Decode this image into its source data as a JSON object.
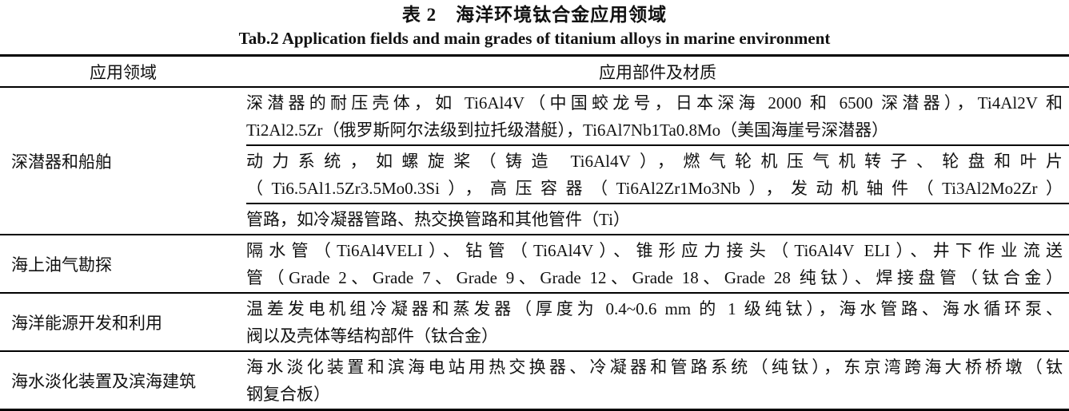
{
  "document": {
    "title_zh": "表 2　海洋环境钛合金应用领域",
    "title_en": "Tab.2 Application fields and main grades of titanium alloys in marine environment"
  },
  "table": {
    "header": {
      "field": "应用领域",
      "parts": "应用部件及材质"
    },
    "rows": [
      {
        "field": "深潜器和船舶",
        "segments": [
          {
            "lines": [
              "深潜器的耐压壳体，如 Ti6Al4V（中国蛟龙号，日本深海 2000 和 6500 深潜器），Ti4Al2V 和",
              "Ti2Al2.5Zr（俄罗斯阿尔法级到拉托级潜艇），Ti6Al7Nb1Ta0.8Mo（美国海崖号深潜器）"
            ]
          },
          {
            "lines": [
              "动力系统，如螺旋桨（铸造 Ti6Al4V），燃气轮机压气机转子、轮盘和叶片",
              "（Ti6.5Al1.5Zr3.5Mo0.3Si），高压容器（Ti6Al2Zr1Mo3Nb），发动机轴件（Ti3Al2Mo2Zr）"
            ]
          },
          {
            "lines": [
              "管路，如冷凝器管路、热交换管路和其他管件（Ti）"
            ]
          }
        ]
      },
      {
        "field": "海上油气勘探",
        "segments": [
          {
            "lines": [
              "隔水管（Ti6Al4VELI）、钻管（Ti6Al4V）、锥形应力接头（Ti6Al4V ELI）、井下作业流送",
              "管（Grade 2、Grade 7、Grade 9、Grade 12、Grade 18、Grade 28 纯钛）、焊接盘管（钛合金）"
            ]
          }
        ]
      },
      {
        "field": "海洋能源开发和利用",
        "segments": [
          {
            "lines": [
              "温差发电机组冷凝器和蒸发器（厚度为 0.4~0.6 mm 的 1 级纯钛），海水管路、海水循环泵、",
              "阀以及壳体等结构部件（钛合金）"
            ]
          }
        ]
      },
      {
        "field": "海水淡化装置及滨海建筑",
        "segments": [
          {
            "lines": [
              "海水淡化装置和滨海电站用热交换器、冷凝器和管路系统（纯钛），东京湾跨海大桥桥墩（钛",
              "钢复合板）"
            ]
          }
        ]
      }
    ]
  },
  "colors": {
    "text": "#111111",
    "rule": "#000000",
    "background": "#ffffff"
  }
}
